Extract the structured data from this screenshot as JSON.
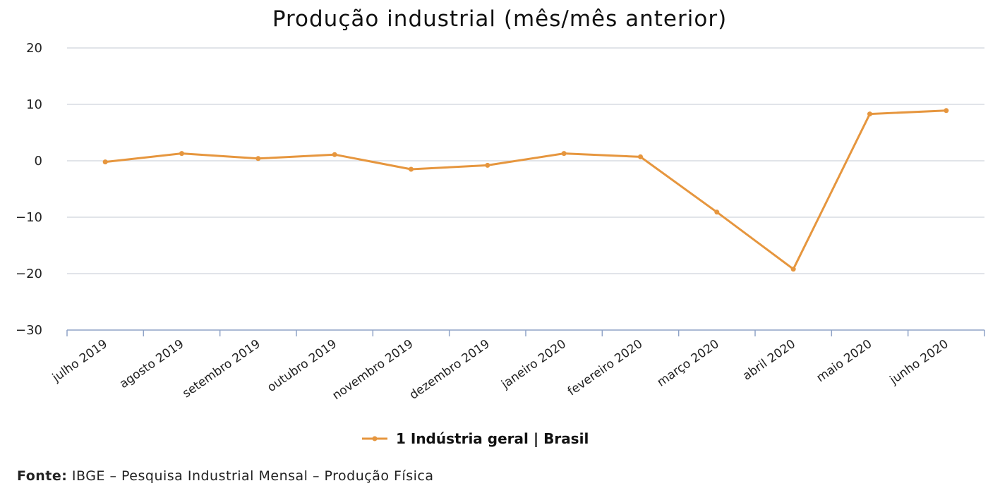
{
  "chart_data": {
    "type": "line",
    "title": "Produção industrial (mês/mês anterior)",
    "categories": [
      "julho 2019",
      "agosto 2019",
      "setembro 2019",
      "outubro 2019",
      "novembro 2019",
      "dezembro 2019",
      "janeiro 2020",
      "fevereiro 2020",
      "março 2020",
      "abril 2020",
      "maio 2020",
      "junho 2020"
    ],
    "series": [
      {
        "name": "1 Indústria geral | Brasil",
        "values": [
          -0.2,
          1.3,
          0.4,
          1.1,
          -1.5,
          -0.8,
          1.3,
          0.7,
          -9.1,
          -19.2,
          8.3,
          8.9
        ]
      }
    ],
    "ylim": [
      -30,
      20
    ],
    "yticks": [
      "20",
      "10",
      "0",
      "−10",
      "−20",
      "−30"
    ],
    "ytick_values": [
      20,
      10,
      0,
      -10,
      -20,
      -30
    ],
    "grid": true,
    "legend_position": "bottom",
    "colors": {
      "series": "#e6963e",
      "grid": "#cfd3dc",
      "axis": "#8fa3c7"
    }
  },
  "source": {
    "label": "Fonte:",
    "text": " IBGE – Pesquisa Industrial Mensal – Produção Física"
  }
}
